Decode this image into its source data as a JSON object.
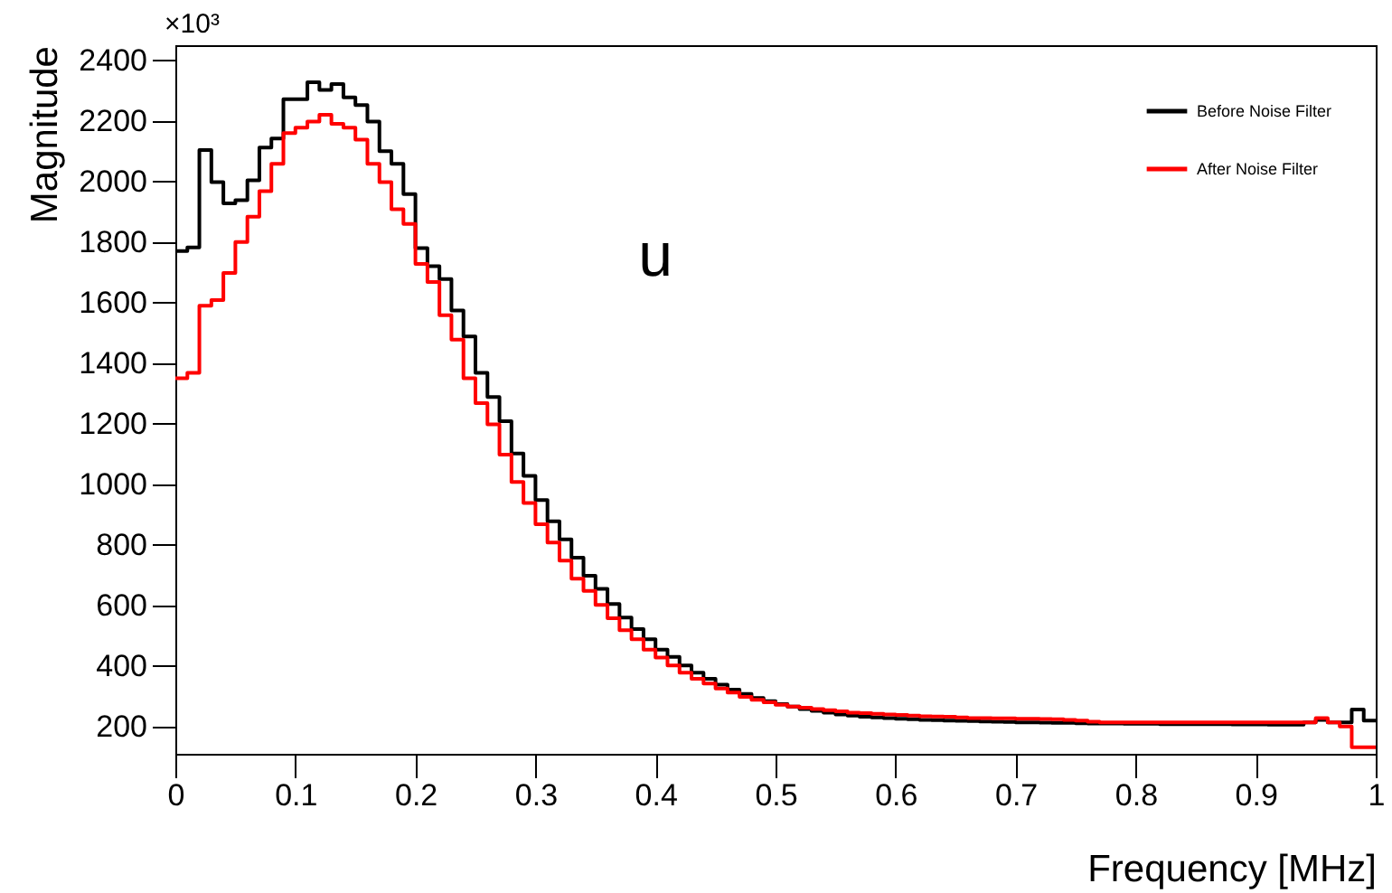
{
  "chart_data": {
    "type": "step",
    "xlabel": "Frequency [MHz]",
    "ylabel": "Magnitude",
    "annotations": [
      "×10³",
      "u"
    ],
    "xlim": [
      0,
      1
    ],
    "ylim": [
      110,
      2450
    ],
    "xticks": [
      0,
      0.1,
      0.2,
      0.3,
      0.4,
      0.5,
      0.6,
      0.7,
      0.8,
      0.9,
      1
    ],
    "yticks": [
      200,
      400,
      600,
      800,
      1000,
      1200,
      1400,
      1600,
      1800,
      2000,
      2200,
      2400
    ],
    "grid": false,
    "legend": "top right",
    "x": [
      0,
      0.01,
      0.02,
      0.03,
      0.04,
      0.05,
      0.06,
      0.07,
      0.08,
      0.09,
      0.1,
      0.11,
      0.12,
      0.13,
      0.14,
      0.15,
      0.16,
      0.17,
      0.18,
      0.19,
      0.2,
      0.21,
      0.22,
      0.23,
      0.24,
      0.25,
      0.26,
      0.27,
      0.28,
      0.29,
      0.3,
      0.31,
      0.32,
      0.33,
      0.34,
      0.35,
      0.36,
      0.37,
      0.38,
      0.39,
      0.4,
      0.41,
      0.42,
      0.43,
      0.44,
      0.45,
      0.46,
      0.47,
      0.48,
      0.49,
      0.5,
      0.51,
      0.52,
      0.53,
      0.54,
      0.55,
      0.56,
      0.57,
      0.58,
      0.59,
      0.6,
      0.61,
      0.62,
      0.63,
      0.64,
      0.65,
      0.66,
      0.67,
      0.68,
      0.69,
      0.7,
      0.71,
      0.72,
      0.73,
      0.74,
      0.75,
      0.76,
      0.77,
      0.78,
      0.79,
      0.8,
      0.81,
      0.82,
      0.83,
      0.84,
      0.85,
      0.86,
      0.87,
      0.88,
      0.89,
      0.9,
      0.91,
      0.92,
      0.93,
      0.94,
      0.95,
      0.96,
      0.97,
      0.98,
      0.99,
      1
    ],
    "series": [
      {
        "name": "Before Noise Filter",
        "color": "#000000",
        "values": [
          1770,
          1782,
          2104,
          1998,
          1928,
          1938,
          2004,
          2112,
          2142,
          2272,
          2272,
          2328,
          2302,
          2322,
          2278,
          2252,
          2198,
          2100,
          2058,
          1958,
          1780,
          1720,
          1678,
          1574,
          1488,
          1368,
          1288,
          1208,
          1102,
          1028,
          948,
          878,
          818,
          758,
          698,
          655,
          605,
          560,
          522,
          488,
          454,
          430,
          402,
          378,
          358,
          338,
          322,
          308,
          294,
          284,
          274,
          266,
          258,
          252,
          246,
          240,
          236,
          232,
          230,
          228,
          226,
          224,
          222,
          221,
          220,
          219,
          218,
          217,
          216,
          215,
          214,
          214,
          213,
          212,
          212,
          211,
          210,
          210,
          210,
          209,
          209,
          209,
          208,
          208,
          208,
          208,
          208,
          208,
          207,
          207,
          207,
          206,
          206,
          206,
          214,
          222,
          214,
          214,
          256,
          220,
          220
        ]
      },
      {
        "name": "After Noise Filter",
        "color": "#ff0000",
        "values": [
          1350,
          1368,
          1590,
          1608,
          1698,
          1800,
          1884,
          1968,
          2058,
          2160,
          2178,
          2198,
          2220,
          2190,
          2178,
          2138,
          2058,
          1998,
          1908,
          1860,
          1728,
          1668,
          1558,
          1478,
          1350,
          1268,
          1198,
          1098,
          1008,
          938,
          868,
          808,
          748,
          688,
          648,
          602,
          558,
          518,
          488,
          454,
          428,
          402,
          378,
          358,
          342,
          326,
          312,
          298,
          288,
          280,
          272,
          266,
          262,
          258,
          254,
          250,
          246,
          244,
          242,
          240,
          238,
          236,
          234,
          233,
          232,
          230,
          228,
          228,
          227,
          227,
          226,
          226,
          225,
          224,
          222,
          220,
          216,
          214,
          214,
          214,
          214,
          214,
          214,
          214,
          214,
          214,
          214,
          214,
          214,
          214,
          214,
          214,
          214,
          214,
          214,
          228,
          214,
          200,
          132,
          132,
          132
        ]
      }
    ]
  }
}
